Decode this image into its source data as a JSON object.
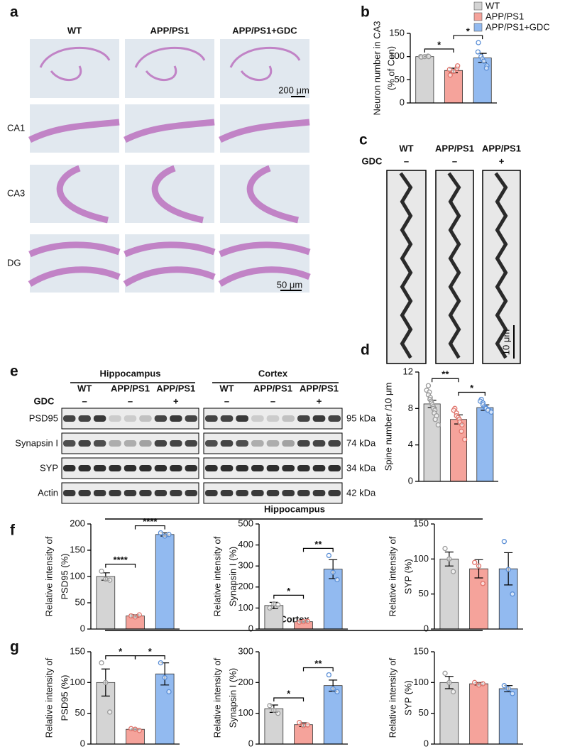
{
  "panels": {
    "letters": [
      "a",
      "b",
      "c",
      "d",
      "e",
      "f",
      "g"
    ]
  },
  "panel_a": {
    "columns": [
      "WT",
      "APP/PS1",
      "APP/PS1+GDC"
    ],
    "rows": [
      "CA1",
      "CA3",
      "DG"
    ],
    "scale_bars": [
      "200 μm",
      "50 μm"
    ]
  },
  "panel_c": {
    "columns": [
      "WT",
      "APP/PS1",
      "APP/PS1"
    ],
    "treatment_label": "GDC",
    "treatment": [
      "–",
      "–",
      "+"
    ],
    "scale_bar": "10 μm"
  },
  "panel_e": {
    "regions": [
      "Hippocampus",
      "Cortex"
    ],
    "groups": [
      "WT",
      "APP/PS1",
      "APP/PS1"
    ],
    "treatment_label": "GDC",
    "treatment": [
      "–",
      "–",
      "+"
    ],
    "proteins": [
      "PSD95",
      "Synapsin I",
      "SYP",
      "Actin"
    ],
    "sizes": [
      "95 kDa",
      "74 kDa",
      "34 kDa",
      "42 kDa"
    ]
  },
  "panel_f": {
    "title": "Hippocampus"
  },
  "panel_g": {
    "title": "Cortex"
  },
  "legend": {
    "names": [
      "WT",
      "APP/PS1",
      "APP/PS1+GDC"
    ],
    "colors": [
      "#d4d4d4",
      "#f5a39b",
      "#92baf0"
    ],
    "point_colors": [
      "#9a9a9a",
      "#e0736a",
      "#5b8fd6"
    ]
  },
  "chart_data": [
    {
      "type": "bar",
      "ylabel": [
        "Neuron number in CA3",
        "(% of Con)"
      ],
      "categories": [
        null,
        null,
        null
      ],
      "values": [
        100,
        70,
        97
      ],
      "errors": [
        1,
        5,
        10
      ],
      "points": [
        [
          100,
          99,
          100,
          101,
          100
        ],
        [
          72,
          60,
          68,
          75,
          80
        ],
        [
          130,
          110,
          100,
          95,
          90,
          80,
          75
        ]
      ],
      "annotations": [
        "*",
        "*"
      ],
      "ylim": [
        0,
        150
      ],
      "yticks": [
        0,
        50,
        100,
        150
      ]
    },
    {
      "type": "bar",
      "ylabel": [
        "Spine number /10 μm"
      ],
      "categories": [
        null,
        null,
        null
      ],
      "values": [
        8.5,
        6.8,
        8.1
      ],
      "errors": [
        0.4,
        0.5,
        0.3
      ],
      "points": [
        [
          10.5,
          10,
          9.8,
          9.5,
          9.2,
          9,
          8.8,
          8.6,
          8.4,
          8.2,
          8,
          7.8,
          7.5,
          7.2,
          6.8,
          6.2
        ],
        [
          8,
          7.8,
          7.5,
          7.2,
          7,
          6.8,
          6.5,
          6.2,
          5.5,
          4.6
        ],
        [
          9,
          8.8,
          8.6,
          8.4,
          8.2,
          8.1,
          8,
          7.9,
          7.8,
          7.6
        ]
      ],
      "annotations": [
        "**",
        "*"
      ],
      "ylim": [
        0,
        12
      ],
      "yticks": [
        0,
        4,
        8,
        12
      ]
    },
    {
      "type": "bar",
      "ylabel": [
        "Relative intensity of",
        "PSD95 (%)"
      ],
      "categories": [
        null,
        null,
        null
      ],
      "values": [
        100,
        25,
        180
      ],
      "errors": [
        7,
        2,
        3
      ],
      "points": [
        [
          110,
          95,
          93
        ],
        [
          25,
          23,
          27
        ],
        [
          183,
          177,
          180
        ]
      ],
      "annotations": [
        "****",
        "****"
      ],
      "ylim": [
        0,
        200
      ],
      "yticks": [
        0,
        50,
        100,
        150,
        200
      ]
    },
    {
      "type": "bar",
      "ylabel": [
        "Relative intensity of",
        "Synapsin I (%)"
      ],
      "categories": [
        null,
        null,
        null
      ],
      "values": [
        112,
        35,
        285
      ],
      "errors": [
        15,
        3,
        45
      ],
      "points": [
        [
          100,
          120,
          115
        ],
        [
          33,
          35,
          37
        ],
        [
          350,
          270,
          235
        ]
      ],
      "annotations": [
        "*",
        "**"
      ],
      "ylim": [
        0,
        500
      ],
      "yticks": [
        0,
        100,
        200,
        300,
        400,
        500
      ]
    },
    {
      "type": "bar",
      "ylabel": [
        "Relative intensity of",
        "SYP (%)"
      ],
      "categories": [
        null,
        null,
        null
      ],
      "values": [
        100,
        86,
        86
      ],
      "errors": [
        10,
        13,
        23
      ],
      "points": [
        [
          115,
          100,
          82
        ],
        [
          95,
          90,
          65
        ],
        [
          125,
          85,
          50
        ]
      ],
      "annotations": [],
      "ylim": [
        0,
        150
      ],
      "yticks": [
        0,
        50,
        100,
        150
      ]
    },
    {
      "type": "bar",
      "ylabel": [
        "Relative intensity of",
        "PSD95 (%)"
      ],
      "categories": [
        null,
        null,
        null
      ],
      "values": [
        100,
        24,
        114
      ],
      "errors": [
        22,
        1,
        18
      ],
      "points": [
        [
          132,
          100,
          52
        ],
        [
          25,
          24,
          22
        ],
        [
          132,
          108,
          85
        ]
      ],
      "annotations": [
        "*",
        "*"
      ],
      "ylim": [
        0,
        150
      ],
      "yticks": [
        0,
        50,
        100,
        150
      ]
    },
    {
      "type": "bar",
      "ylabel": [
        "Relative intensity of",
        "Synapsin I (%)"
      ],
      "categories": [
        null,
        null,
        null
      ],
      "values": [
        115,
        63,
        190
      ],
      "errors": [
        12,
        6,
        18
      ],
      "points": [
        [
          125,
          110,
          100
        ],
        [
          70,
          60,
          62
        ],
        [
          225,
          180,
          170
        ]
      ],
      "annotations": [
        "*",
        "**"
      ],
      "ylim": [
        0,
        300
      ],
      "yticks": [
        0,
        100,
        200,
        300
      ]
    },
    {
      "type": "bar",
      "ylabel": [
        "Relative intensity of",
        "SYP (%)"
      ],
      "categories": [
        null,
        null,
        null
      ],
      "values": [
        100,
        98,
        90
      ],
      "errors": [
        10,
        2,
        5
      ],
      "points": [
        [
          115,
          100,
          85
        ],
        [
          100,
          96,
          98
        ],
        [
          95,
          90,
          82
        ]
      ],
      "annotations": [],
      "ylim": [
        0,
        150
      ],
      "yticks": [
        0,
        50,
        100,
        150
      ]
    }
  ]
}
